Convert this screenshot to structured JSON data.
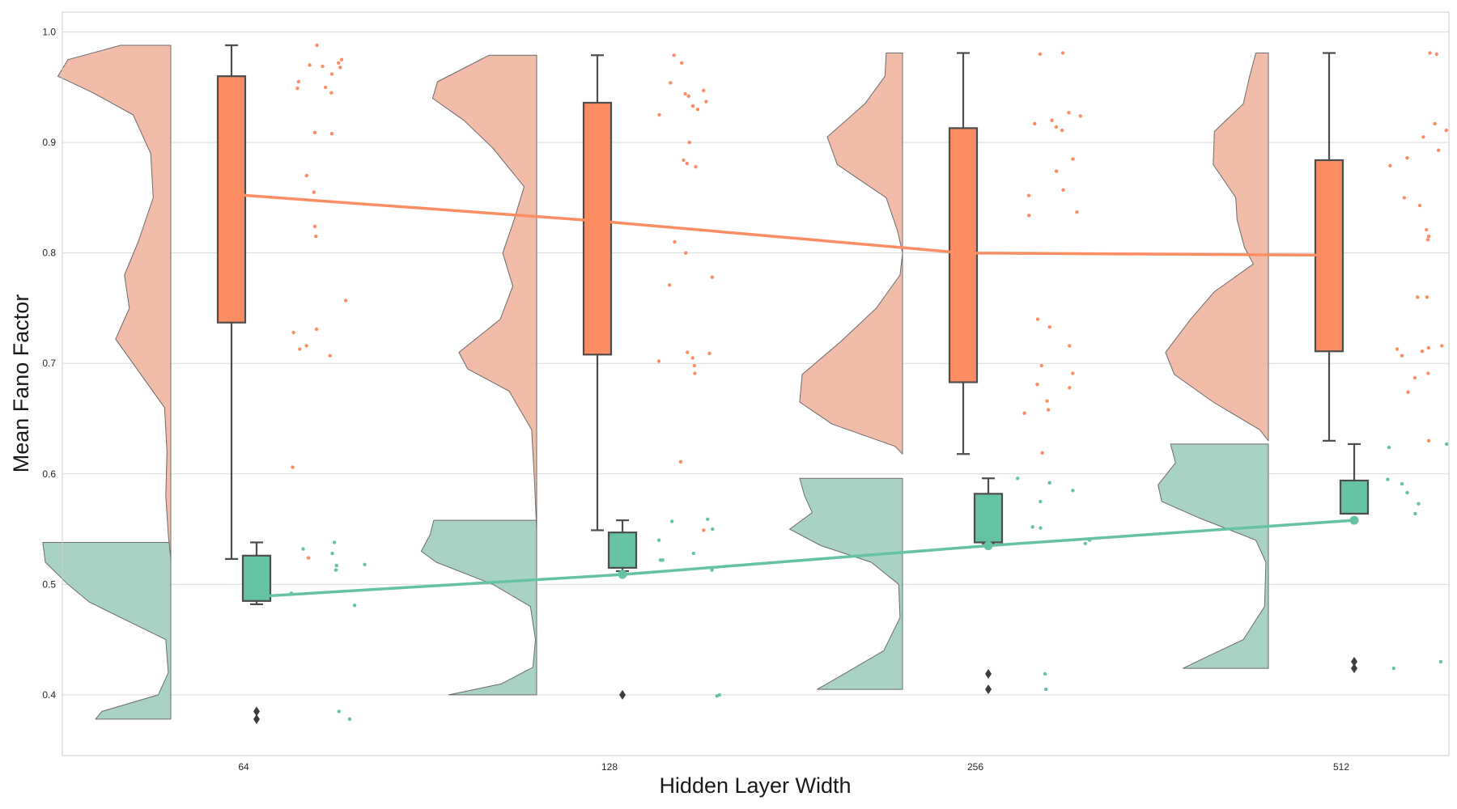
{
  "chart_data": {
    "type": "raincloud",
    "title": "",
    "xlabel": "Hidden Layer Width",
    "ylabel": "Mean Fano Factor",
    "categories": [
      "64",
      "128",
      "256",
      "512"
    ],
    "ylim": [
      0.345,
      1.018
    ],
    "yticks": [
      0.4,
      0.5,
      0.6,
      0.7,
      0.8,
      0.9,
      1.0
    ],
    "ytick_labels": [
      "0.4",
      "0.5",
      "0.6",
      "0.7",
      "0.8",
      "0.9",
      "1.0"
    ],
    "grid": true,
    "legend": "none",
    "series": [
      {
        "color": "#fc8d62",
        "violin_color": "#f0b8a3",
        "box": [
          {
            "whisker_low": 0.523,
            "q1": 0.737,
            "q3": 0.96,
            "whisker_high": 0.988,
            "outliers": []
          },
          {
            "whisker_low": 0.549,
            "q1": 0.708,
            "q3": 0.936,
            "whisker_high": 0.979,
            "outliers": []
          },
          {
            "whisker_low": 0.618,
            "q1": 0.683,
            "q3": 0.913,
            "whisker_high": 0.981,
            "outliers": []
          },
          {
            "whisker_low": 0.63,
            "q1": 0.711,
            "q3": 0.884,
            "whisker_high": 0.981,
            "outliers": []
          }
        ],
        "mean_line": [
          0.853,
          0.829,
          0.8,
          0.798
        ],
        "points": [
          [
            0.988,
            0.975,
            0.972,
            0.97,
            0.969,
            0.968,
            0.962,
            0.955,
            0.95,
            0.949,
            0.945,
            0.909,
            0.908,
            0.87,
            0.855,
            0.824,
            0.815,
            0.757,
            0.731,
            0.728,
            0.716,
            0.713,
            0.707,
            0.606,
            0.524
          ],
          [
            0.979,
            0.972,
            0.954,
            0.947,
            0.944,
            0.942,
            0.937,
            0.933,
            0.93,
            0.925,
            0.9,
            0.884,
            0.881,
            0.878,
            0.81,
            0.8,
            0.778,
            0.771,
            0.71,
            0.709,
            0.705,
            0.702,
            0.698,
            0.691,
            0.611,
            0.549
          ],
          [
            0.981,
            0.98,
            0.927,
            0.924,
            0.92,
            0.917,
            0.914,
            0.911,
            0.885,
            0.874,
            0.857,
            0.852,
            0.837,
            0.834,
            0.74,
            0.733,
            0.716,
            0.698,
            0.691,
            0.681,
            0.678,
            0.666,
            0.658,
            0.655,
            0.619
          ],
          [
            0.981,
            0.98,
            0.917,
            0.911,
            0.905,
            0.893,
            0.886,
            0.879,
            0.85,
            0.843,
            0.821,
            0.815,
            0.812,
            0.76,
            0.76,
            0.716,
            0.714,
            0.713,
            0.711,
            0.707,
            0.691,
            0.687,
            0.674,
            0.63
          ]
        ],
        "violin_profile": [
          [
            [
              0.988,
              0.0
            ],
            [
              0.988,
              0.4
            ],
            [
              0.975,
              0.82
            ],
            [
              0.96,
              0.9
            ],
            [
              0.945,
              0.62
            ],
            [
              0.925,
              0.3
            ],
            [
              0.89,
              0.16
            ],
            [
              0.85,
              0.14
            ],
            [
              0.81,
              0.26
            ],
            [
              0.78,
              0.37
            ],
            [
              0.75,
              0.33
            ],
            [
              0.722,
              0.44
            ],
            [
              0.695,
              0.27
            ],
            [
              0.66,
              0.05
            ],
            [
              0.62,
              0.03
            ],
            [
              0.58,
              0.04
            ],
            [
              0.545,
              0.02
            ],
            [
              0.523,
              0.0
            ]
          ],
          [
            [
              0.979,
              0.0
            ],
            [
              0.979,
              0.38
            ],
            [
              0.955,
              0.79
            ],
            [
              0.94,
              0.83
            ],
            [
              0.92,
              0.58
            ],
            [
              0.895,
              0.35
            ],
            [
              0.86,
              0.1
            ],
            [
              0.83,
              0.18
            ],
            [
              0.8,
              0.27
            ],
            [
              0.77,
              0.19
            ],
            [
              0.74,
              0.29
            ],
            [
              0.71,
              0.62
            ],
            [
              0.695,
              0.55
            ],
            [
              0.675,
              0.22
            ],
            [
              0.64,
              0.04
            ],
            [
              0.6,
              0.02
            ],
            [
              0.549,
              0.0
            ]
          ],
          [
            [
              0.981,
              0.0
            ],
            [
              0.981,
              0.13
            ],
            [
              0.96,
              0.14
            ],
            [
              0.935,
              0.3
            ],
            [
              0.905,
              0.6
            ],
            [
              0.88,
              0.52
            ],
            [
              0.85,
              0.13
            ],
            [
              0.82,
              0.04
            ],
            [
              0.8,
              0.0
            ],
            [
              0.78,
              0.02
            ],
            [
              0.75,
              0.21
            ],
            [
              0.72,
              0.49
            ],
            [
              0.69,
              0.8
            ],
            [
              0.665,
              0.82
            ],
            [
              0.645,
              0.56
            ],
            [
              0.625,
              0.06
            ],
            [
              0.618,
              0.0
            ]
          ],
          [
            [
              0.981,
              0.0
            ],
            [
              0.981,
              0.1
            ],
            [
              0.96,
              0.15
            ],
            [
              0.935,
              0.2
            ],
            [
              0.91,
              0.43
            ],
            [
              0.88,
              0.44
            ],
            [
              0.85,
              0.26
            ],
            [
              0.83,
              0.25
            ],
            [
              0.805,
              0.19
            ],
            [
              0.79,
              0.12
            ],
            [
              0.765,
              0.43
            ],
            [
              0.74,
              0.62
            ],
            [
              0.71,
              0.82
            ],
            [
              0.69,
              0.75
            ],
            [
              0.665,
              0.44
            ],
            [
              0.64,
              0.07
            ],
            [
              0.63,
              0.0
            ]
          ]
        ]
      },
      {
        "color": "#66c2a5",
        "violin_color": "#a3d0c1",
        "box": [
          {
            "whisker_low": 0.482,
            "q1": 0.485,
            "q3": 0.526,
            "whisker_high": 0.538,
            "outliers": [
              0.378,
              0.385
            ]
          },
          {
            "whisker_low": 0.512,
            "q1": 0.515,
            "q3": 0.547,
            "whisker_high": 0.558,
            "outliers": [
              0.4
            ]
          },
          {
            "whisker_low": 0.537,
            "q1": 0.538,
            "q3": 0.582,
            "whisker_high": 0.596,
            "outliers": [
              0.405,
              0.419
            ]
          },
          {
            "whisker_low": 0.564,
            "q1": 0.564,
            "q3": 0.594,
            "whisker_high": 0.627,
            "outliers": [
              0.424,
              0.43
            ]
          }
        ],
        "mean_line": [
          0.489,
          0.509,
          0.535,
          0.558
        ],
        "mean_markers": [
          false,
          true,
          true,
          true
        ],
        "points": [
          [
            0.538,
            0.532,
            0.528,
            0.518,
            0.517,
            0.513,
            0.492,
            0.481,
            0.385,
            0.378
          ],
          [
            0.559,
            0.557,
            0.55,
            0.54,
            0.528,
            0.522,
            0.522,
            0.513,
            0.4,
            0.399
          ],
          [
            0.596,
            0.592,
            0.585,
            0.575,
            0.552,
            0.551,
            0.54,
            0.537,
            0.419,
            0.405
          ],
          [
            0.627,
            0.624,
            0.595,
            0.591,
            0.583,
            0.573,
            0.566,
            0.564,
            0.43,
            0.424
          ]
        ],
        "violin_profile": [
          [
            [
              0.538,
              0.0
            ],
            [
              0.538,
              1.02
            ],
            [
              0.52,
              1.0
            ],
            [
              0.5,
              0.82
            ],
            [
              0.484,
              0.65
            ],
            [
              0.47,
              0.4
            ],
            [
              0.45,
              0.04
            ],
            [
              0.42,
              0.02
            ],
            [
              0.4,
              0.1
            ],
            [
              0.385,
              0.55
            ],
            [
              0.378,
              0.6
            ],
            [
              0.378,
              0.0
            ]
          ],
          [
            [
              0.558,
              0.0
            ],
            [
              0.558,
              0.82
            ],
            [
              0.545,
              0.85
            ],
            [
              0.53,
              0.92
            ],
            [
              0.52,
              0.8
            ],
            [
              0.5,
              0.35
            ],
            [
              0.48,
              0.05
            ],
            [
              0.45,
              0.01
            ],
            [
              0.425,
              0.03
            ],
            [
              0.41,
              0.28
            ],
            [
              0.4,
              0.7
            ],
            [
              0.4,
              0.0
            ]
          ],
          [
            [
              0.596,
              0.0
            ],
            [
              0.596,
              0.82
            ],
            [
              0.58,
              0.78
            ],
            [
              0.565,
              0.72
            ],
            [
              0.55,
              0.9
            ],
            [
              0.535,
              0.65
            ],
            [
              0.52,
              0.25
            ],
            [
              0.5,
              0.03
            ],
            [
              0.47,
              0.02
            ],
            [
              0.44,
              0.15
            ],
            [
              0.42,
              0.45
            ],
            [
              0.405,
              0.68
            ],
            [
              0.405,
              0.0
            ]
          ],
          [
            [
              0.627,
              0.0
            ],
            [
              0.627,
              0.78
            ],
            [
              0.61,
              0.74
            ],
            [
              0.59,
              0.88
            ],
            [
              0.575,
              0.85
            ],
            [
              0.56,
              0.55
            ],
            [
              0.54,
              0.1
            ],
            [
              0.52,
              0.02
            ],
            [
              0.48,
              0.03
            ],
            [
              0.45,
              0.2
            ],
            [
              0.435,
              0.48
            ],
            [
              0.424,
              0.68
            ],
            [
              0.424,
              0.0
            ]
          ]
        ]
      }
    ]
  }
}
